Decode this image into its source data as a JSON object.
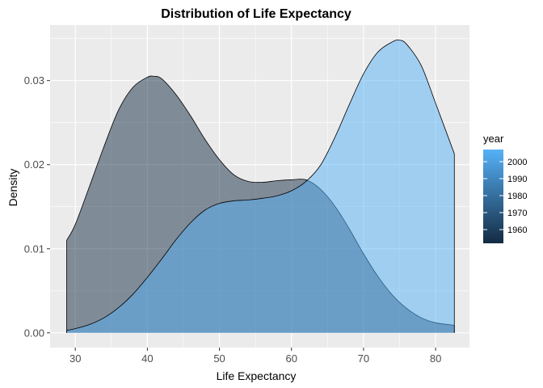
{
  "chart_data": {
    "type": "area",
    "subtype": "density",
    "title": "Distribution of Life Expectancy",
    "xlabel": "Life Expectancy",
    "ylabel": "Density",
    "xlim": [
      26.5,
      84.7
    ],
    "ylim": [
      -0.00175,
      0.0366
    ],
    "x_ticks": [
      30,
      40,
      50,
      60,
      70,
      80
    ],
    "y_ticks": [
      0.0,
      0.01,
      0.02,
      0.03
    ],
    "y_tick_labels": [
      "0.00",
      "0.01",
      "0.02",
      "0.03"
    ],
    "grid": true,
    "legend": {
      "title": "year",
      "type": "colorbar",
      "position": "right",
      "labels": [
        "2000",
        "1990",
        "1980",
        "1970",
        "1960"
      ],
      "low_color": "#132b43",
      "high_color": "#56b1f7"
    },
    "series": [
      {
        "year": 1952,
        "fill": "#132b43",
        "opacity": 0.5,
        "x": [
          28.8,
          30,
          32,
          34,
          36,
          38,
          40,
          41,
          42,
          44,
          46,
          48,
          50,
          52,
          54,
          56,
          58,
          60,
          62,
          64,
          66,
          68,
          70,
          72,
          74,
          76,
          78,
          80,
          82.6
        ],
        "y": [
          0.011,
          0.0129,
          0.0175,
          0.0222,
          0.0265,
          0.0292,
          0.0304,
          0.0305,
          0.0302,
          0.0283,
          0.0258,
          0.023,
          0.0206,
          0.0188,
          0.018,
          0.0179,
          0.0181,
          0.0182,
          0.0182,
          0.0171,
          0.0151,
          0.0124,
          0.0094,
          0.0067,
          0.0045,
          0.0029,
          0.0018,
          0.0012,
          0.0009
        ]
      },
      {
        "year": 2007,
        "fill": "#56b1f7",
        "opacity": 0.5,
        "x": [
          28.8,
          30,
          32,
          34,
          36,
          38,
          40,
          42,
          44,
          46,
          48,
          50,
          52,
          54,
          56,
          58,
          60,
          62,
          64,
          66,
          68,
          70,
          72,
          74,
          75,
          76,
          78,
          80,
          82.6
        ],
        "y": [
          0.0003,
          0.0005,
          0.001,
          0.0018,
          0.003,
          0.0046,
          0.0066,
          0.0088,
          0.0111,
          0.0131,
          0.0146,
          0.0154,
          0.0157,
          0.0158,
          0.016,
          0.0163,
          0.0169,
          0.018,
          0.0199,
          0.0232,
          0.0271,
          0.0308,
          0.0334,
          0.0346,
          0.0348,
          0.0343,
          0.0318,
          0.0273,
          0.0213
        ]
      }
    ]
  }
}
